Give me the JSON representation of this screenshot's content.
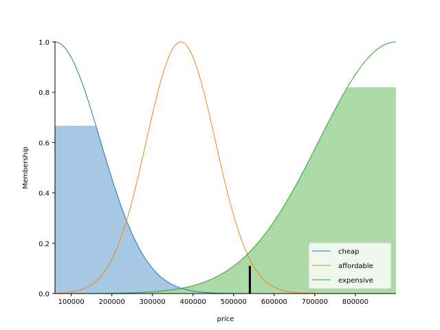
{
  "chart_data": {
    "type": "line",
    "xlabel": "price",
    "ylabel": "Membership",
    "xlim": [
      60000,
      900000
    ],
    "ylim": [
      0,
      1.0
    ],
    "x_ticks": [
      100000,
      200000,
      300000,
      400000,
      500000,
      600000,
      700000,
      800000
    ],
    "y_ticks": [
      0.0,
      0.2,
      0.4,
      0.6,
      0.8,
      1.0
    ],
    "legend_position": "lower-right",
    "grid": false,
    "series": [
      {
        "name": "cheap",
        "color": "#1f77b4",
        "fill_color": "#a6c8e2",
        "curve": "gaussian",
        "mean": 60000,
        "sigma": 112000,
        "fill_clip": 0.667
      },
      {
        "name": "affordable",
        "color": "#ff7f0e",
        "curve": "gaussian",
        "mean": 370000,
        "sigma": 85000
      },
      {
        "name": "expensive",
        "color": "#2ca02c",
        "fill_color": "#abdaa7",
        "curve": "gaussian",
        "mean": 900000,
        "sigma": 190000,
        "fill_clip": 0.82
      }
    ],
    "marker": {
      "x": 540000,
      "y": 0.11,
      "color": "#000000"
    }
  }
}
